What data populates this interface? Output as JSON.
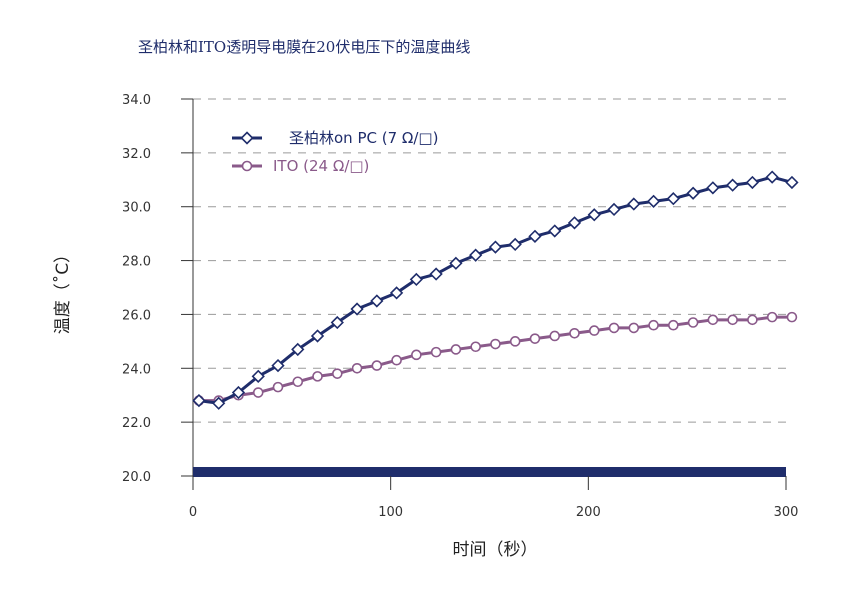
{
  "chart_data": {
    "type": "line",
    "title": "圣柏林和ITO透明导电膜在20伏电压下的温度曲线",
    "xlabel": "时间（秒）",
    "ylabel": "温度（˚C）",
    "xlim": [
      0,
      300
    ],
    "ylim": [
      20,
      34
    ],
    "x_ticks": [
      0,
      100,
      200,
      300
    ],
    "y_ticks": [
      "20.0",
      "22.0",
      "24.0",
      "26.0",
      "28.0",
      "30.0",
      "32.0",
      "34.0"
    ],
    "grid": "horizontal dashed",
    "legend_position": "top-left",
    "x": [
      3,
      13,
      23,
      33,
      43,
      53,
      63,
      73,
      83,
      93,
      103,
      113,
      123,
      133,
      143,
      153,
      163,
      173,
      183,
      193,
      203,
      213,
      223,
      233,
      243,
      253,
      263,
      273,
      283,
      293,
      303
    ],
    "series": [
      {
        "name": "圣柏林on PC (7 Ω/□)",
        "color": "#1f2d6b",
        "marker": "diamond",
        "values": [
          22.8,
          22.7,
          23.1,
          23.7,
          24.1,
          24.7,
          25.2,
          25.7,
          26.2,
          26.5,
          26.8,
          27.3,
          27.5,
          27.9,
          28.2,
          28.5,
          28.6,
          28.9,
          29.1,
          29.4,
          29.7,
          29.9,
          30.1,
          30.2,
          30.3,
          30.5,
          30.7,
          30.8,
          30.9,
          31.1,
          30.9
        ]
      },
      {
        "name": "ITO (24 Ω/□)",
        "color": "#8a5a8a",
        "marker": "circle",
        "values": [
          22.8,
          22.8,
          23.0,
          23.1,
          23.3,
          23.5,
          23.7,
          23.8,
          24.0,
          24.1,
          24.3,
          24.5,
          24.6,
          24.7,
          24.8,
          24.9,
          25.0,
          25.1,
          25.2,
          25.3,
          25.4,
          25.5,
          25.5,
          25.6,
          25.6,
          25.7,
          25.8,
          25.8,
          25.8,
          25.9,
          25.9
        ]
      }
    ]
  }
}
